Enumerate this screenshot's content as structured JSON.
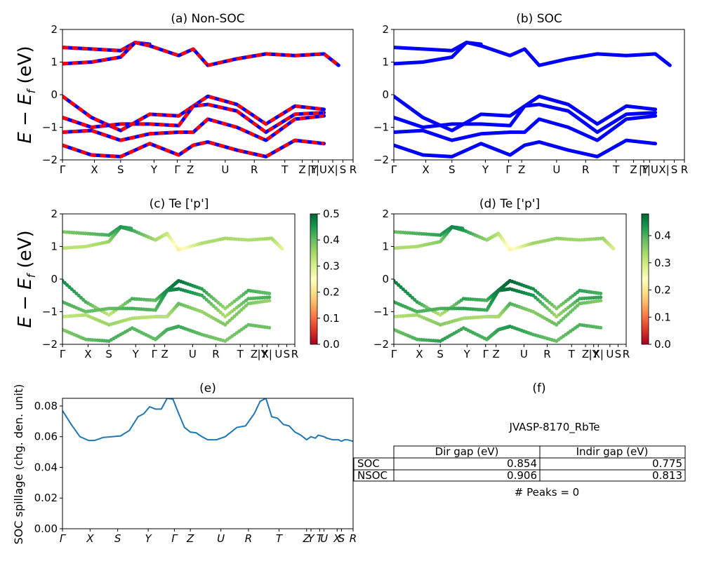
{
  "chart_data": [
    {
      "type": "line",
      "title": "(a) Non-SOC",
      "ylabel": "E − E_f (eV)",
      "ylim": [
        -2,
        2
      ],
      "yticks": [
        "2",
        "1",
        "0",
        "−1",
        "−2"
      ],
      "kpath": [
        "Γ",
        "X",
        "S",
        "Y",
        "Γ",
        "Z",
        "U",
        "R",
        "T",
        "Z",
        "|Y",
        "T|U",
        "X|",
        "S",
        "R"
      ],
      "colors": [
        "#0000ff",
        "#ff0000"
      ],
      "bands": [
        {
          "x": [
            0,
            0.1,
            0.2,
            0.25,
            0.3
          ],
          "y": [
            1.45,
            1.4,
            1.35,
            1.6,
            1.55
          ]
        },
        {
          "x": [
            0,
            0.1,
            0.2,
            0.25,
            0.3,
            0.4,
            0.45,
            0.5
          ],
          "y": [
            0.95,
            1.0,
            1.15,
            1.6,
            1.5,
            1.2,
            1.4,
            0.9
          ]
        },
        {
          "x": [
            0.5,
            0.6,
            0.7,
            0.8,
            0.9,
            0.95
          ],
          "y": [
            0.9,
            1.1,
            1.25,
            1.2,
            1.25,
            0.9
          ]
        },
        {
          "x": [
            0,
            0.1,
            0.2,
            0.3,
            0.4,
            0.45,
            0.5,
            0.6,
            0.7,
            0.8,
            0.9
          ],
          "y": [
            -0.05,
            -0.7,
            -1.1,
            -0.6,
            -0.65,
            -0.35,
            -0.05,
            -0.3,
            -0.9,
            -0.35,
            -0.45
          ]
        },
        {
          "x": [
            0,
            0.1,
            0.2,
            0.3,
            0.4,
            0.45,
            0.5,
            0.6,
            0.7,
            0.8,
            0.9
          ],
          "y": [
            -0.7,
            -1.0,
            -0.9,
            -0.9,
            -0.95,
            -0.35,
            -0.3,
            -0.5,
            -1.15,
            -0.6,
            -0.55
          ]
        },
        {
          "x": [
            0,
            0.1,
            0.2,
            0.3,
            0.4,
            0.45,
            0.5,
            0.6,
            0.7,
            0.8,
            0.9
          ],
          "y": [
            -1.15,
            -1.1,
            -1.4,
            -1.2,
            -1.15,
            -1.15,
            -0.75,
            -1.0,
            -1.4,
            -0.75,
            -0.65
          ]
        },
        {
          "x": [
            0,
            0.1,
            0.2,
            0.3,
            0.4,
            0.45,
            0.5,
            0.6,
            0.7,
            0.8,
            0.9
          ],
          "y": [
            -1.55,
            -1.85,
            -1.9,
            -1.5,
            -1.85,
            -1.55,
            -1.45,
            -1.7,
            -1.9,
            -1.4,
            -1.5
          ]
        }
      ]
    },
    {
      "type": "line",
      "title": "(b) SOC",
      "ylim": [
        -2,
        2
      ],
      "yticks": [
        "2",
        "1",
        "0",
        "−1",
        "−2"
      ],
      "kpath": [
        "Γ",
        "X",
        "S",
        "Y",
        "Γ",
        "Z",
        "U",
        "R",
        "T",
        "Z",
        "|Y",
        "T|U",
        "X|",
        "S",
        "R"
      ],
      "colors": [
        "#0000ff"
      ],
      "bands": [
        {
          "x": [
            0,
            0.1,
            0.2,
            0.25,
            0.3
          ],
          "y": [
            1.45,
            1.4,
            1.35,
            1.6,
            1.55
          ]
        },
        {
          "x": [
            0,
            0.1,
            0.2,
            0.25,
            0.3,
            0.4,
            0.45,
            0.5
          ],
          "y": [
            0.95,
            1.0,
            1.15,
            1.6,
            1.5,
            1.2,
            1.4,
            0.9
          ]
        },
        {
          "x": [
            0.5,
            0.6,
            0.7,
            0.8,
            0.9,
            0.95
          ],
          "y": [
            0.9,
            1.1,
            1.25,
            1.2,
            1.25,
            0.9
          ]
        },
        {
          "x": [
            0,
            0.1,
            0.2,
            0.3,
            0.4,
            0.45,
            0.5,
            0.6,
            0.7,
            0.8,
            0.9
          ],
          "y": [
            -0.05,
            -0.7,
            -1.1,
            -0.6,
            -0.65,
            -0.35,
            -0.05,
            -0.3,
            -0.9,
            -0.35,
            -0.45
          ]
        },
        {
          "x": [
            0,
            0.1,
            0.2,
            0.3,
            0.4,
            0.45,
            0.5,
            0.6,
            0.7,
            0.8,
            0.9
          ],
          "y": [
            -0.7,
            -1.0,
            -0.9,
            -0.9,
            -0.95,
            -0.35,
            -0.3,
            -0.5,
            -1.15,
            -0.6,
            -0.55
          ]
        },
        {
          "x": [
            0,
            0.1,
            0.2,
            0.3,
            0.4,
            0.45,
            0.5,
            0.6,
            0.7,
            0.8,
            0.9
          ],
          "y": [
            -1.15,
            -1.1,
            -1.4,
            -1.2,
            -1.15,
            -1.15,
            -0.75,
            -1.0,
            -1.4,
            -0.75,
            -0.65
          ]
        },
        {
          "x": [
            0,
            0.1,
            0.2,
            0.3,
            0.4,
            0.45,
            0.5,
            0.6,
            0.7,
            0.8,
            0.9
          ],
          "y": [
            -1.55,
            -1.85,
            -1.9,
            -1.5,
            -1.85,
            -1.55,
            -1.45,
            -1.7,
            -1.9,
            -1.4,
            -1.5
          ]
        }
      ]
    },
    {
      "type": "scatter",
      "title": "(c)  Te ['p']",
      "ylabel": "E − E_f (eV)",
      "ylim": [
        -2,
        2
      ],
      "yticks": [
        "2",
        "1",
        "0",
        "−1",
        "−2"
      ],
      "kpath": [
        "Γ",
        "X",
        "S",
        "Y",
        "Γ",
        "Z",
        "U",
        "R",
        "T",
        "Z",
        "|Y",
        "X|",
        "U",
        "S",
        "R"
      ],
      "colorbar": {
        "min": 0.0,
        "max": 0.5,
        "ticks": [
          "0.0",
          "0.1",
          "0.2",
          "0.3",
          "0.4",
          "0.5"
        ],
        "colormap": "RdYlGn"
      },
      "bands": [
        {
          "x": [
            0,
            0.1,
            0.2,
            0.25,
            0.3
          ],
          "y": [
            1.45,
            1.4,
            1.35,
            1.6,
            1.55
          ],
          "w": [
            0.38,
            0.4,
            0.42,
            0.45,
            0.43
          ]
        },
        {
          "x": [
            0,
            0.1,
            0.2,
            0.25,
            0.3,
            0.4,
            0.45,
            0.5
          ],
          "y": [
            0.95,
            1.0,
            1.15,
            1.6,
            1.5,
            1.2,
            1.4,
            0.9
          ],
          "w": [
            0.33,
            0.33,
            0.36,
            0.45,
            0.43,
            0.35,
            0.32,
            0.22
          ]
        },
        {
          "x": [
            0.5,
            0.6,
            0.7,
            0.8,
            0.9,
            0.95
          ],
          "y": [
            0.9,
            1.1,
            1.25,
            1.2,
            1.25,
            0.9
          ],
          "w": [
            0.22,
            0.34,
            0.35,
            0.34,
            0.35,
            0.28
          ]
        },
        {
          "x": [
            0,
            0.1,
            0.2,
            0.3,
            0.4,
            0.45,
            0.5,
            0.6,
            0.7,
            0.8,
            0.9
          ],
          "y": [
            -0.05,
            -0.7,
            -1.1,
            -0.6,
            -0.65,
            -0.35,
            -0.05,
            -0.3,
            -0.9,
            -0.35,
            -0.45
          ],
          "w": [
            0.46,
            0.42,
            0.32,
            0.42,
            0.4,
            0.47,
            0.49,
            0.44,
            0.36,
            0.42,
            0.4
          ]
        },
        {
          "x": [
            0,
            0.1,
            0.2,
            0.3,
            0.4,
            0.45,
            0.5,
            0.6,
            0.7,
            0.8,
            0.9
          ],
          "y": [
            -0.7,
            -1.0,
            -0.9,
            -0.9,
            -0.95,
            -0.35,
            -0.3,
            -0.5,
            -1.15,
            -0.6,
            -0.55
          ],
          "w": [
            0.42,
            0.4,
            0.4,
            0.42,
            0.41,
            0.46,
            0.47,
            0.43,
            0.34,
            0.41,
            0.42
          ]
        },
        {
          "x": [
            0,
            0.1,
            0.2,
            0.3,
            0.4,
            0.45,
            0.5,
            0.6,
            0.7,
            0.8,
            0.9
          ],
          "y": [
            -1.15,
            -1.1,
            -1.4,
            -1.2,
            -1.15,
            -1.15,
            -0.75,
            -1.0,
            -1.4,
            -0.75,
            -0.65
          ],
          "w": [
            0.32,
            0.34,
            0.36,
            0.34,
            0.33,
            0.33,
            0.4,
            0.36,
            0.38,
            0.38,
            0.36
          ]
        },
        {
          "x": [
            0,
            0.1,
            0.2,
            0.3,
            0.4,
            0.45,
            0.5,
            0.6,
            0.7,
            0.8,
            0.9
          ],
          "y": [
            -1.55,
            -1.85,
            -1.9,
            -1.5,
            -1.85,
            -1.55,
            -1.45,
            -1.7,
            -1.9,
            -1.4,
            -1.5
          ],
          "w": [
            0.38,
            0.4,
            0.42,
            0.41,
            0.4,
            0.42,
            0.43,
            0.4,
            0.38,
            0.4,
            0.39
          ]
        }
      ]
    },
    {
      "type": "scatter",
      "title": "(d) Te ['p']",
      "ylim": [
        -2,
        2
      ],
      "yticks": [
        "2",
        "1",
        "0",
        "−1",
        "−2"
      ],
      "kpath": [
        "Γ",
        "X",
        "S",
        "Y",
        "Γ",
        "Z",
        "U",
        "R",
        "T",
        "Z",
        "|Y",
        "X|",
        "U",
        "S",
        "R"
      ],
      "colorbar": {
        "min": 0.0,
        "max": 0.48,
        "ticks": [
          "0.0",
          "0.1",
          "0.2",
          "0.3",
          "0.4"
        ],
        "colormap": "RdYlGn"
      },
      "bands": [
        {
          "x": [
            0,
            0.1,
            0.2,
            0.25,
            0.3
          ],
          "y": [
            1.45,
            1.4,
            1.35,
            1.6,
            1.55
          ],
          "w": [
            0.38,
            0.4,
            0.42,
            0.45,
            0.43
          ]
        },
        {
          "x": [
            0,
            0.1,
            0.2,
            0.25,
            0.3,
            0.4,
            0.45,
            0.5
          ],
          "y": [
            0.95,
            1.0,
            1.15,
            1.6,
            1.5,
            1.2,
            1.4,
            0.9
          ],
          "w": [
            0.33,
            0.33,
            0.36,
            0.45,
            0.43,
            0.35,
            0.32,
            0.22
          ]
        },
        {
          "x": [
            0.5,
            0.6,
            0.7,
            0.8,
            0.9,
            0.95
          ],
          "y": [
            0.9,
            1.1,
            1.25,
            1.2,
            1.25,
            0.9
          ],
          "w": [
            0.22,
            0.34,
            0.35,
            0.34,
            0.35,
            0.28
          ]
        },
        {
          "x": [
            0,
            0.1,
            0.2,
            0.3,
            0.4,
            0.45,
            0.5,
            0.6,
            0.7,
            0.8,
            0.9
          ],
          "y": [
            -0.05,
            -0.7,
            -1.1,
            -0.6,
            -0.65,
            -0.35,
            -0.05,
            -0.3,
            -0.9,
            -0.35,
            -0.45
          ],
          "w": [
            0.46,
            0.42,
            0.32,
            0.42,
            0.4,
            0.47,
            0.48,
            0.44,
            0.36,
            0.42,
            0.4
          ]
        },
        {
          "x": [
            0,
            0.1,
            0.2,
            0.3,
            0.4,
            0.45,
            0.5,
            0.6,
            0.7,
            0.8,
            0.9
          ],
          "y": [
            -0.7,
            -1.0,
            -0.9,
            -0.9,
            -0.95,
            -0.35,
            -0.3,
            -0.5,
            -1.15,
            -0.6,
            -0.55
          ],
          "w": [
            0.42,
            0.4,
            0.4,
            0.42,
            0.41,
            0.46,
            0.47,
            0.43,
            0.34,
            0.41,
            0.42
          ]
        },
        {
          "x": [
            0,
            0.1,
            0.2,
            0.3,
            0.4,
            0.45,
            0.5,
            0.6,
            0.7,
            0.8,
            0.9
          ],
          "y": [
            -1.15,
            -1.1,
            -1.4,
            -1.2,
            -1.15,
            -1.15,
            -0.75,
            -1.0,
            -1.4,
            -0.75,
            -0.65
          ],
          "w": [
            0.32,
            0.34,
            0.36,
            0.34,
            0.33,
            0.33,
            0.4,
            0.36,
            0.38,
            0.38,
            0.36
          ]
        },
        {
          "x": [
            0,
            0.1,
            0.2,
            0.3,
            0.4,
            0.45,
            0.5,
            0.6,
            0.7,
            0.8,
            0.9
          ],
          "y": [
            -1.55,
            -1.85,
            -1.9,
            -1.5,
            -1.85,
            -1.55,
            -1.45,
            -1.7,
            -1.9,
            -1.4,
            -1.5
          ],
          "w": [
            0.38,
            0.4,
            0.42,
            0.41,
            0.4,
            0.42,
            0.43,
            0.4,
            0.38,
            0.4,
            0.39
          ]
        }
      ]
    },
    {
      "type": "line",
      "title": "(e)",
      "ylabel": "SOC spillage (chg. den. unit)",
      "ylim": [
        0,
        0.085
      ],
      "yticks": [
        "0.08",
        "0.06",
        "0.04",
        "0.02",
        "0.00"
      ],
      "kpath": [
        "Γ",
        "X",
        "S",
        "Y",
        "Γ",
        "Z",
        "U",
        "R",
        "T",
        "Z",
        "Y",
        "T",
        "U",
        "X",
        "S",
        "R"
      ],
      "color": "#1f77b4",
      "x": [
        0,
        0.03,
        0.06,
        0.09,
        0.11,
        0.14,
        0.17,
        0.2,
        0.23,
        0.26,
        0.28,
        0.3,
        0.32,
        0.34,
        0.36,
        0.38,
        0.4,
        0.42,
        0.44,
        0.46,
        0.48,
        0.5,
        0.53,
        0.56,
        0.6,
        0.63,
        0.66,
        0.68,
        0.7,
        0.72,
        0.74,
        0.76,
        0.78,
        0.8,
        0.82,
        0.84,
        0.855,
        0.87,
        0.88,
        0.9,
        0.91,
        0.93,
        0.95,
        0.96,
        0.97,
        0.98,
        1.0
      ],
      "y": [
        0.077,
        0.068,
        0.06,
        0.0575,
        0.0575,
        0.0595,
        0.06,
        0.0605,
        0.064,
        0.073,
        0.075,
        0.0795,
        0.078,
        0.078,
        0.085,
        0.0845,
        0.075,
        0.066,
        0.063,
        0.0625,
        0.06,
        0.058,
        0.058,
        0.06,
        0.066,
        0.067,
        0.075,
        0.083,
        0.085,
        0.073,
        0.072,
        0.068,
        0.067,
        0.063,
        0.061,
        0.058,
        0.06,
        0.059,
        0.061,
        0.06,
        0.059,
        0.058,
        0.058,
        0.057,
        0.058,
        0.058,
        0.057
      ]
    }
  ],
  "panel_f": {
    "title": "(f)",
    "material": "JVASP-8170_RbTe",
    "columns": [
      "Dir gap (eV)",
      "Indir gap (eV)"
    ],
    "rows": [
      {
        "label": "SOC",
        "dir": "0.854",
        "indir": "0.775"
      },
      {
        "label": "NSOC",
        "dir": "0.906",
        "indir": "0.813"
      }
    ],
    "peaks": "# Peaks = 0"
  }
}
